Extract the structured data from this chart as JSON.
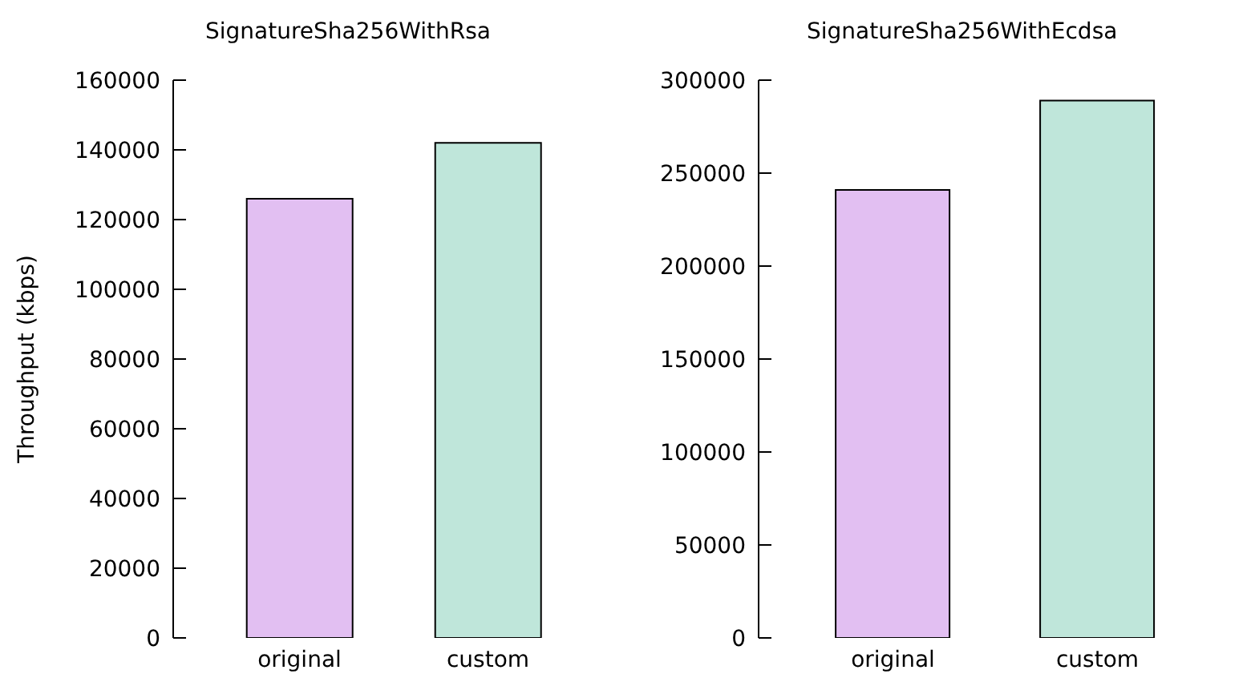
{
  "chart_data": [
    {
      "type": "bar",
      "title": "SignatureSha256WithRsa",
      "ylabel": "Throughput (kbps)",
      "categories": [
        "original",
        "custom"
      ],
      "values": [
        126000,
        142000
      ],
      "colors": [
        "#e2bff2",
        "#bfe6da"
      ],
      "ylim": [
        0,
        160000
      ],
      "yticks": [
        0,
        20000,
        40000,
        60000,
        80000,
        100000,
        120000,
        140000,
        160000
      ],
      "grid": false
    },
    {
      "type": "bar",
      "title": "SignatureSha256WithEcdsa",
      "categories": [
        "original",
        "custom"
      ],
      "values": [
        241000,
        289000
      ],
      "colors": [
        "#e2bff2",
        "#bfe6da"
      ],
      "ylim": [
        0,
        300000
      ],
      "yticks": [
        0,
        50000,
        100000,
        150000,
        200000,
        250000,
        300000
      ],
      "grid": false
    }
  ]
}
